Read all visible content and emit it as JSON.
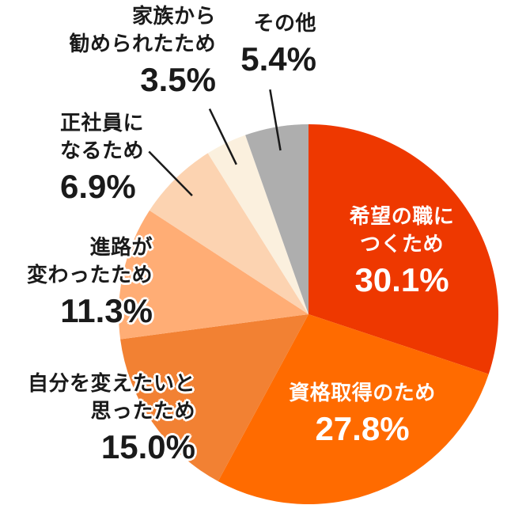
{
  "chart_data": {
    "type": "pie",
    "title": "",
    "unit": "%",
    "direction": "clockwise",
    "start_angle_deg": 0,
    "total": 100,
    "slices": [
      {
        "label": "希望の職につくため",
        "value": 30.1,
        "pct_text": "30.1%",
        "color": "#ee3800",
        "label_lines": [
          "希望の職に",
          "つくため"
        ],
        "label_position": "inside",
        "leader_line": false
      },
      {
        "label": "資格取得のため",
        "value": 27.8,
        "pct_text": "27.8%",
        "color": "#ff6b00",
        "label_lines": [
          "資格取得のため"
        ],
        "label_position": "inside",
        "leader_line": false
      },
      {
        "label": "自分を変えたいと思ったため",
        "value": 15.0,
        "pct_text": "15.0%",
        "color": "#f28133",
        "label_lines": [
          "自分を変えたいと",
          "思ったため"
        ],
        "label_position": "outside",
        "leader_line": false
      },
      {
        "label": "進路が変わったため",
        "value": 11.3,
        "pct_text": "11.3%",
        "color": "#ffad75",
        "label_lines": [
          "進路が",
          "変わったため"
        ],
        "label_position": "outside",
        "leader_line": false
      },
      {
        "label": "正社員になるため",
        "value": 6.9,
        "pct_text": "6.9%",
        "color": "#fcd3b1",
        "label_lines": [
          "正社員に",
          "なるため"
        ],
        "label_position": "outside",
        "leader_line": true
      },
      {
        "label": "家族から勧められたため",
        "value": 3.5,
        "pct_text": "3.5%",
        "color": "#fbf0de",
        "label_lines": [
          "家族から",
          "勧められたため"
        ],
        "label_position": "outside",
        "leader_line": true
      },
      {
        "label": "その他",
        "value": 5.4,
        "pct_text": "5.4%",
        "color": "#aeaeae",
        "label_lines": [
          "その他"
        ],
        "label_position": "outside",
        "leader_line": true
      }
    ],
    "colors": {
      "text_dark": "#1a1a1a",
      "text_light": "#ffffff",
      "leader_line": "#1a1a1a",
      "background": "#ffffff"
    }
  }
}
